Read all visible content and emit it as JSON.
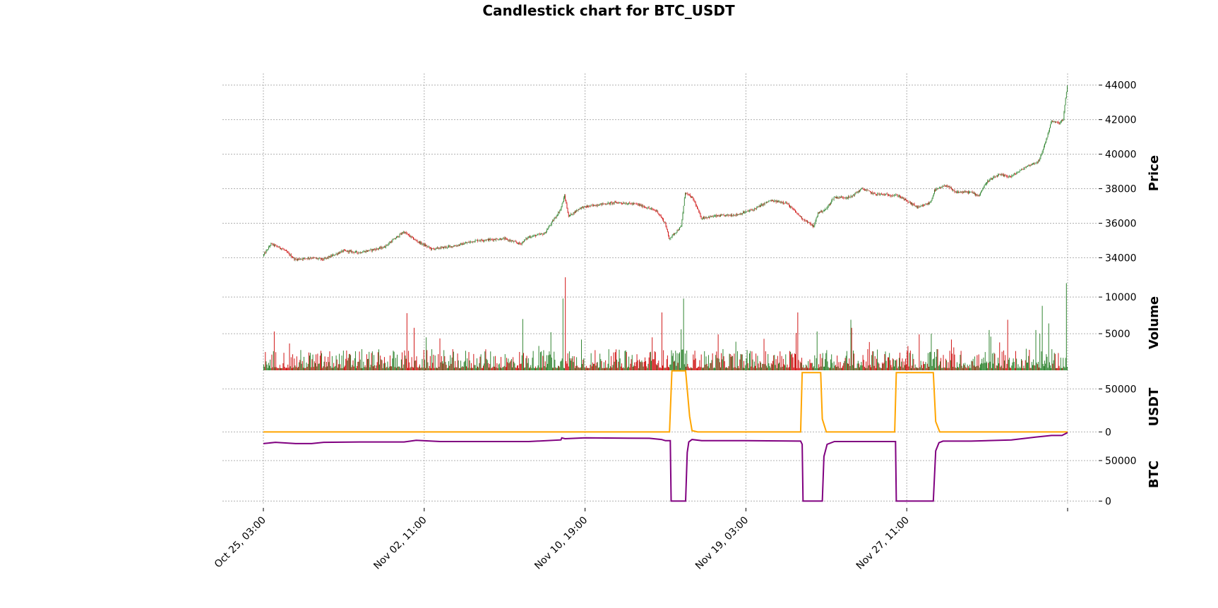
{
  "chart_data": {
    "type": "candlestick",
    "title": "Candlestick chart for BTC_USDT",
    "x_tick_labels": [
      "Oct 25, 03:00",
      "Nov 02, 11:00",
      "Nov 10, 19:00",
      "Nov 19, 03:00",
      "Nov 27, 11:00"
    ],
    "x_range_hours": [
      0,
      1000
    ],
    "x_tick_hours": [
      0,
      200,
      400,
      600,
      800,
      1000
    ],
    "grid": true,
    "colors": {
      "up": "#1f7a1f",
      "down": "#cc0000",
      "usdt": "#ffa500",
      "btc": "#800080"
    },
    "panels": [
      {
        "name": "price",
        "ylabel": "Price",
        "ylim": [
          33200,
          44600
        ],
        "yticks": [
          34000,
          36000,
          38000,
          40000,
          42000,
          44000
        ],
        "ytick_labels": [
          "34000",
          "36000",
          "38000",
          "40000",
          "42000",
          "44000"
        ],
        "path_keyframes": [
          [
            0,
            34100
          ],
          [
            10,
            34800
          ],
          [
            25,
            34500
          ],
          [
            40,
            33900
          ],
          [
            60,
            34000
          ],
          [
            75,
            33900
          ],
          [
            100,
            34400
          ],
          [
            120,
            34300
          ],
          [
            150,
            34600
          ],
          [
            175,
            35500
          ],
          [
            190,
            35000
          ],
          [
            210,
            34500
          ],
          [
            240,
            34700
          ],
          [
            265,
            35000
          ],
          [
            300,
            35100
          ],
          [
            320,
            34800
          ],
          [
            330,
            35200
          ],
          [
            350,
            35400
          ],
          [
            370,
            36800
          ],
          [
            375,
            37600
          ],
          [
            380,
            36400
          ],
          [
            395,
            36900
          ],
          [
            420,
            37100
          ],
          [
            440,
            37200
          ],
          [
            465,
            37100
          ],
          [
            490,
            36700
          ],
          [
            500,
            36000
          ],
          [
            505,
            35100
          ],
          [
            520,
            35800
          ],
          [
            525,
            37800
          ],
          [
            535,
            37400
          ],
          [
            545,
            36300
          ],
          [
            560,
            36400
          ],
          [
            590,
            36500
          ],
          [
            610,
            36800
          ],
          [
            630,
            37300
          ],
          [
            650,
            37200
          ],
          [
            670,
            36300
          ],
          [
            685,
            35800
          ],
          [
            690,
            36600
          ],
          [
            700,
            36800
          ],
          [
            710,
            37500
          ],
          [
            730,
            37500
          ],
          [
            745,
            38000
          ],
          [
            760,
            37700
          ],
          [
            790,
            37600
          ],
          [
            800,
            37300
          ],
          [
            815,
            36900
          ],
          [
            830,
            37200
          ],
          [
            835,
            37900
          ],
          [
            850,
            38200
          ],
          [
            860,
            37800
          ],
          [
            880,
            37800
          ],
          [
            890,
            37600
          ],
          [
            900,
            38400
          ],
          [
            915,
            38800
          ],
          [
            930,
            38700
          ],
          [
            950,
            39300
          ],
          [
            965,
            39600
          ],
          [
            975,
            41000
          ],
          [
            980,
            41900
          ],
          [
            990,
            41800
          ],
          [
            995,
            42000
          ],
          [
            1000,
            44000
          ]
        ]
      },
      {
        "name": "volume",
        "ylabel": "Volume",
        "ylim": [
          0,
          13000
        ],
        "yticks": [
          5000,
          10000
        ],
        "ytick_labels": [
          "5000",
          "10000"
        ],
        "spikes": [
          [
            13,
            5300
          ],
          [
            178,
            7800
          ],
          [
            187,
            5800
          ],
          [
            202,
            4500
          ],
          [
            322,
            7000
          ],
          [
            357,
            5200
          ],
          [
            372,
            9800
          ],
          [
            375,
            12700
          ],
          [
            395,
            4200
          ],
          [
            483,
            4500
          ],
          [
            495,
            7900
          ],
          [
            519,
            5600
          ],
          [
            522,
            9800
          ],
          [
            565,
            4900
          ],
          [
            622,
            4300
          ],
          [
            662,
            5100
          ],
          [
            664,
            7900
          ],
          [
            688,
            4200
          ],
          [
            688,
            5300
          ],
          [
            730,
            6900
          ],
          [
            731,
            5800
          ],
          [
            815,
            4900
          ],
          [
            830,
            5000
          ],
          [
            855,
            4200
          ],
          [
            902,
            5500
          ],
          [
            904,
            4600
          ],
          [
            925,
            6900
          ],
          [
            960,
            5500
          ],
          [
            965,
            5000
          ],
          [
            968,
            8800
          ],
          [
            976,
            6400
          ],
          [
            998,
            11900
          ]
        ]
      },
      {
        "name": "usdt",
        "ylabel": "USDT",
        "ylim": [
          -12000,
          70000
        ],
        "yticks": [
          0,
          50000
        ],
        "ytick_labels": [
          "0",
          "50000"
        ],
        "keyframes": [
          [
            0,
            0
          ],
          [
            505,
            0
          ],
          [
            508,
            71000
          ],
          [
            525,
            71000
          ],
          [
            530,
            18000
          ],
          [
            533,
            1500
          ],
          [
            540,
            0
          ],
          [
            668,
            0
          ],
          [
            670,
            69000
          ],
          [
            693,
            69000
          ],
          [
            695,
            15000
          ],
          [
            700,
            0
          ],
          [
            785,
            0
          ],
          [
            787,
            69000
          ],
          [
            833,
            69000
          ],
          [
            836,
            12000
          ],
          [
            841,
            0
          ],
          [
            1000,
            0
          ]
        ]
      },
      {
        "name": "btc",
        "ylabel": "BTC",
        "ylim": [
          -4000,
          70000
        ],
        "yticks": [
          0,
          50000
        ],
        "ytick_labels": [
          "0",
          "50000"
        ],
        "keyframes": [
          [
            0,
            71000
          ],
          [
            15,
            72500
          ],
          [
            40,
            71000
          ],
          [
            60,
            71000
          ],
          [
            75,
            72500
          ],
          [
            120,
            73000
          ],
          [
            175,
            73000
          ],
          [
            190,
            75000
          ],
          [
            220,
            73500
          ],
          [
            330,
            73500
          ],
          [
            370,
            75500
          ],
          [
            371,
            78000
          ],
          [
            375,
            77000
          ],
          [
            400,
            78000
          ],
          [
            480,
            77500
          ],
          [
            495,
            76000
          ],
          [
            500,
            74500
          ],
          [
            506,
            74500
          ],
          [
            507,
            0
          ],
          [
            525,
            0
          ],
          [
            527,
            60000
          ],
          [
            529,
            73000
          ],
          [
            533,
            76000
          ],
          [
            545,
            74500
          ],
          [
            600,
            74500
          ],
          [
            668,
            74000
          ],
          [
            670,
            70000
          ],
          [
            671,
            0
          ],
          [
            695,
            0
          ],
          [
            697,
            55000
          ],
          [
            701,
            70000
          ],
          [
            710,
            73500
          ],
          [
            786,
            73500
          ],
          [
            787,
            0
          ],
          [
            833,
            0
          ],
          [
            836,
            62000
          ],
          [
            840,
            72000
          ],
          [
            845,
            74000
          ],
          [
            880,
            74000
          ],
          [
            930,
            75500
          ],
          [
            960,
            79000
          ],
          [
            980,
            81000
          ],
          [
            993,
            81000
          ],
          [
            1000,
            84500
          ]
        ]
      }
    ]
  }
}
